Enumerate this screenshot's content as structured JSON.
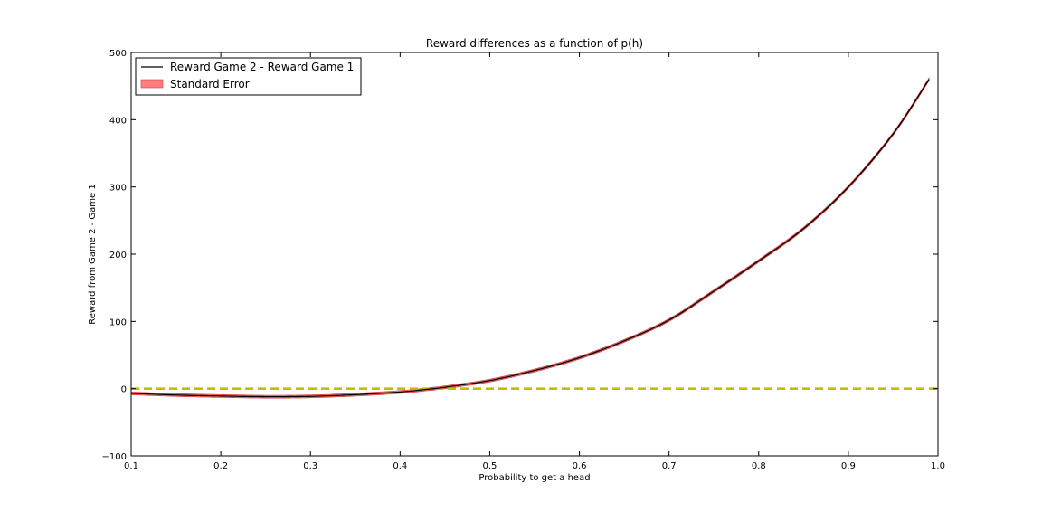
{
  "chart_data": {
    "type": "line",
    "title": "Reward differences as a function of p(h)",
    "xlabel": "Probability to get a head",
    "ylabel": "Reward from Game 2 - Game 1",
    "xlim": [
      0.1,
      1.0
    ],
    "ylim": [
      -100,
      500
    ],
    "xticks": [
      "0.1",
      "0.2",
      "0.3",
      "0.4",
      "0.5",
      "0.6",
      "0.7",
      "0.8",
      "0.9",
      "1.0"
    ],
    "yticks": [
      "−100",
      "0",
      "100",
      "200",
      "300",
      "400",
      "500"
    ],
    "grid": false,
    "legend_position": "top-left",
    "series": [
      {
        "name": "Reward Game 2 - Reward Game 1",
        "kind": "line",
        "color": "#000000",
        "x": [
          0.1,
          0.15,
          0.2,
          0.25,
          0.3,
          0.35,
          0.4,
          0.43,
          0.45,
          0.5,
          0.55,
          0.6,
          0.65,
          0.7,
          0.75,
          0.8,
          0.85,
          0.9,
          0.95,
          0.99
        ],
        "y": [
          -7,
          -9.5,
          -11,
          -12,
          -11.5,
          -9,
          -5,
          -1,
          2,
          12,
          27,
          46,
          71,
          102,
          145,
          190,
          238,
          300,
          379,
          460
        ]
      },
      {
        "name": "Standard Error",
        "kind": "band",
        "color": "#ff7f7f",
        "half_width": 2
      }
    ],
    "reference_line": {
      "y": 0,
      "color": "#bfbf00",
      "style": "dashed"
    }
  }
}
